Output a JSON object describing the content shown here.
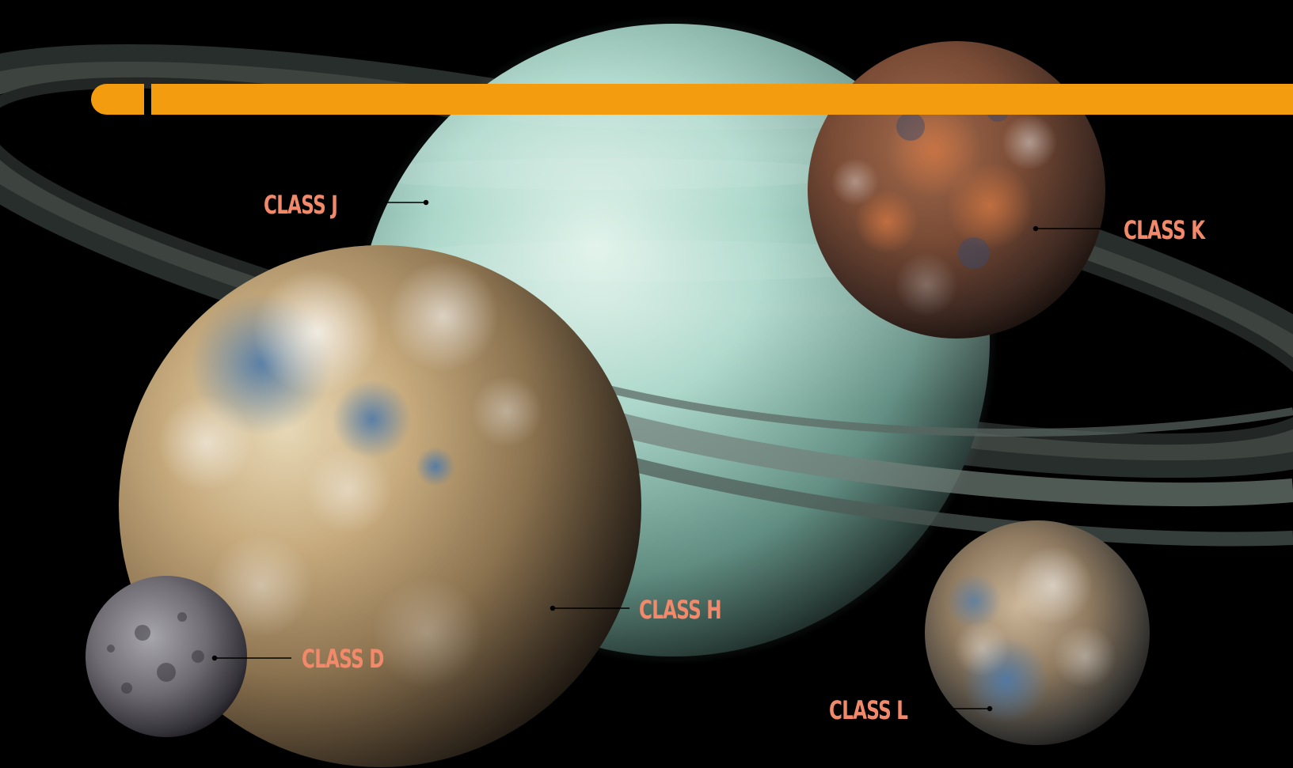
{
  "labels": {
    "class_j": "CLASS J",
    "class_k": "CLASS K",
    "class_h": "CLASS H",
    "class_d": "CLASS D",
    "class_l": "CLASS L"
  },
  "colors": {
    "background": "#000000",
    "accent_bar": "#f39c0f",
    "label_text": "#f2896a",
    "leader_line": "#000000"
  },
  "planets": [
    {
      "name": "Class J",
      "appearance": "pale teal ringed gas giant"
    },
    {
      "name": "Class K",
      "appearance": "rusty brown cratered world"
    },
    {
      "name": "Class H",
      "appearance": "tan desert world with clouds and scattered blue water"
    },
    {
      "name": "Class D",
      "appearance": "small gray cratered moon"
    },
    {
      "name": "Class L",
      "appearance": "brown and blue cloudy world"
    }
  ]
}
